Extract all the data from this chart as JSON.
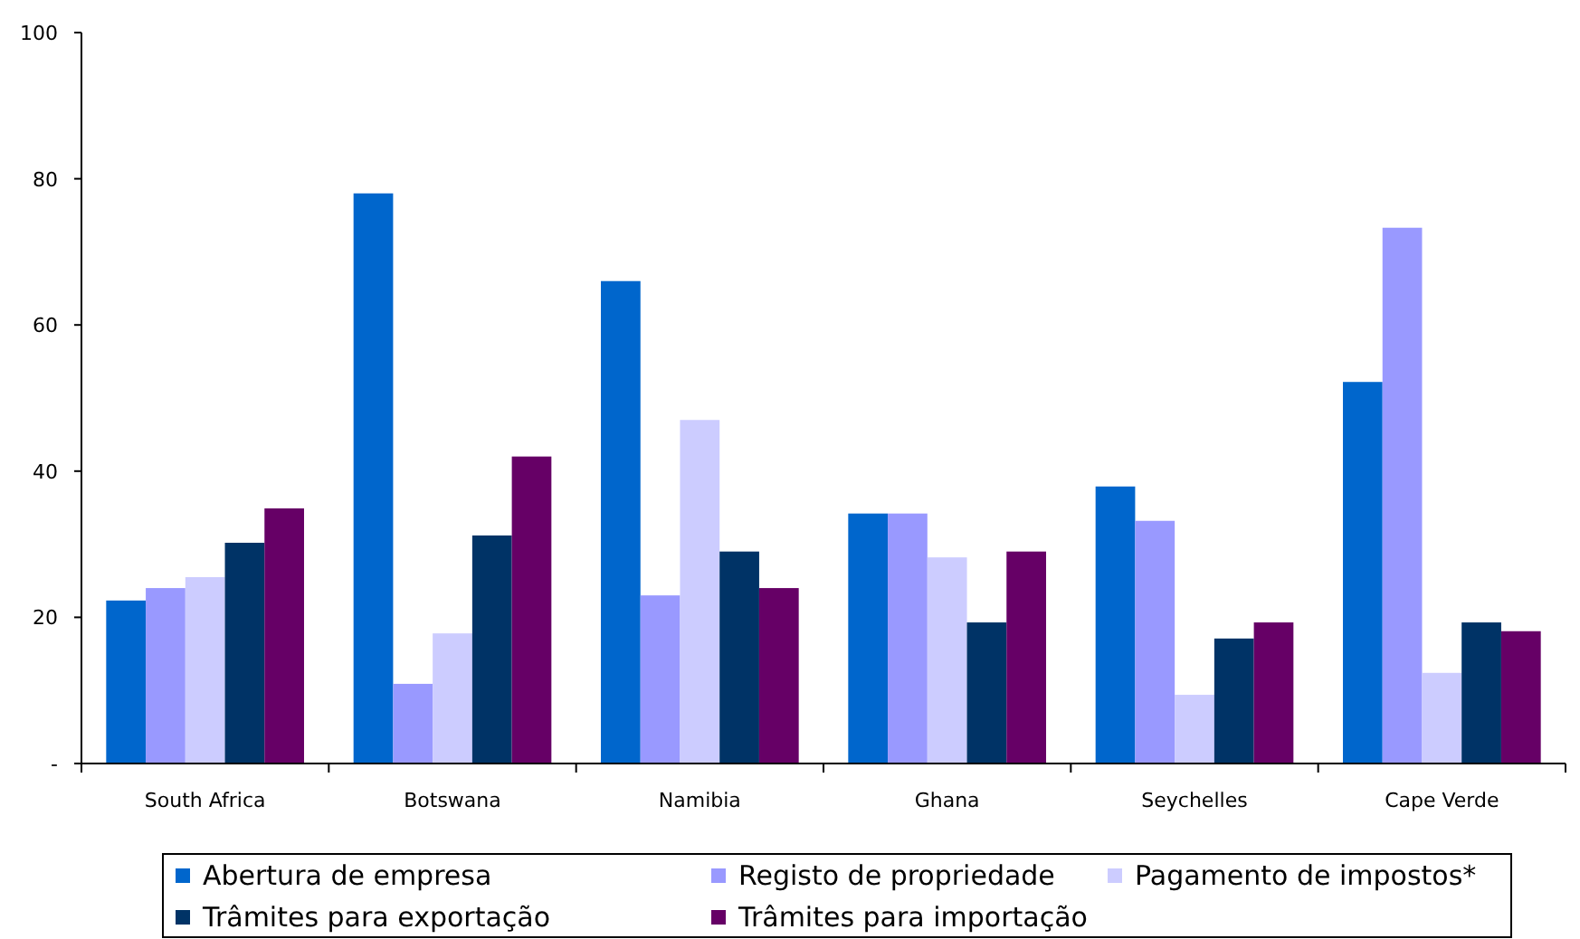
{
  "chart_data": {
    "type": "bar",
    "categories": [
      "South Africa",
      "Botswana",
      "Namibia",
      "Ghana",
      "Seychelles",
      "Cape Verde"
    ],
    "series": [
      {
        "name": "Abertura de empresa",
        "color": "#0066cc",
        "values": [
          22.3,
          78,
          66,
          34.2,
          37.9,
          52.2
        ]
      },
      {
        "name": "Registo de propriedade",
        "color": "#9999ff",
        "values": [
          24,
          10.9,
          23,
          34.2,
          33.2,
          73.3
        ]
      },
      {
        "name": "Pagamento de impostos*",
        "color": "#ccccff",
        "values": [
          25.5,
          17.8,
          47,
          28.2,
          9.4,
          12.4
        ]
      },
      {
        "name": "Trâmites para exportação",
        "color": "#003366",
        "values": [
          30.2,
          31.2,
          29,
          19.3,
          17.1,
          19.3
        ]
      },
      {
        "name": "Trâmites para importação",
        "color": "#660066",
        "values": [
          34.9,
          42,
          24,
          29,
          19.3,
          18.1
        ]
      }
    ],
    "ylim": [
      0,
      100
    ],
    "yticks": [
      {
        "value": 0,
        "label": "-"
      },
      20,
      40,
      60,
      80,
      100
    ],
    "grid": false,
    "legend": "bottom"
  }
}
